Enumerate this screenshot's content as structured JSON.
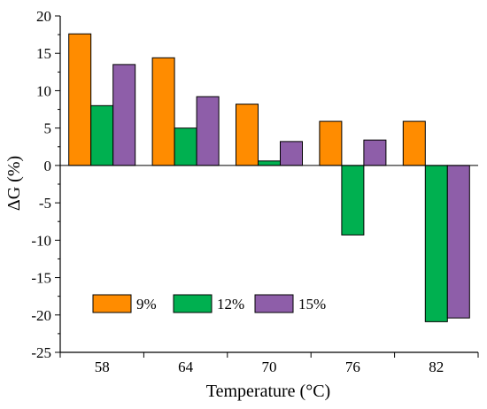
{
  "chart_data": {
    "type": "bar",
    "xlabel": "Temperature (°C)",
    "ylabel": "ΔG (%)",
    "categories": [
      "58",
      "64",
      "70",
      "76",
      "82"
    ],
    "ylim": [
      -25,
      20
    ],
    "yticks": [
      "20",
      "15",
      "10",
      "5",
      "0",
      "-5",
      "-10",
      "-15",
      "-20",
      "-25"
    ],
    "series": [
      {
        "name": "9%",
        "color": "#ff8c00",
        "values": [
          17.6,
          14.4,
          8.2,
          5.9,
          5.9
        ]
      },
      {
        "name": "12%",
        "color": "#00b050",
        "values": [
          8.0,
          5.0,
          0.6,
          -9.3,
          -20.9
        ]
      },
      {
        "name": "15%",
        "color": "#8e5ea9",
        "values": [
          13.5,
          9.2,
          3.2,
          3.4,
          -20.4
        ]
      }
    ],
    "legend_position": "bottom-left",
    "grid": false
  }
}
